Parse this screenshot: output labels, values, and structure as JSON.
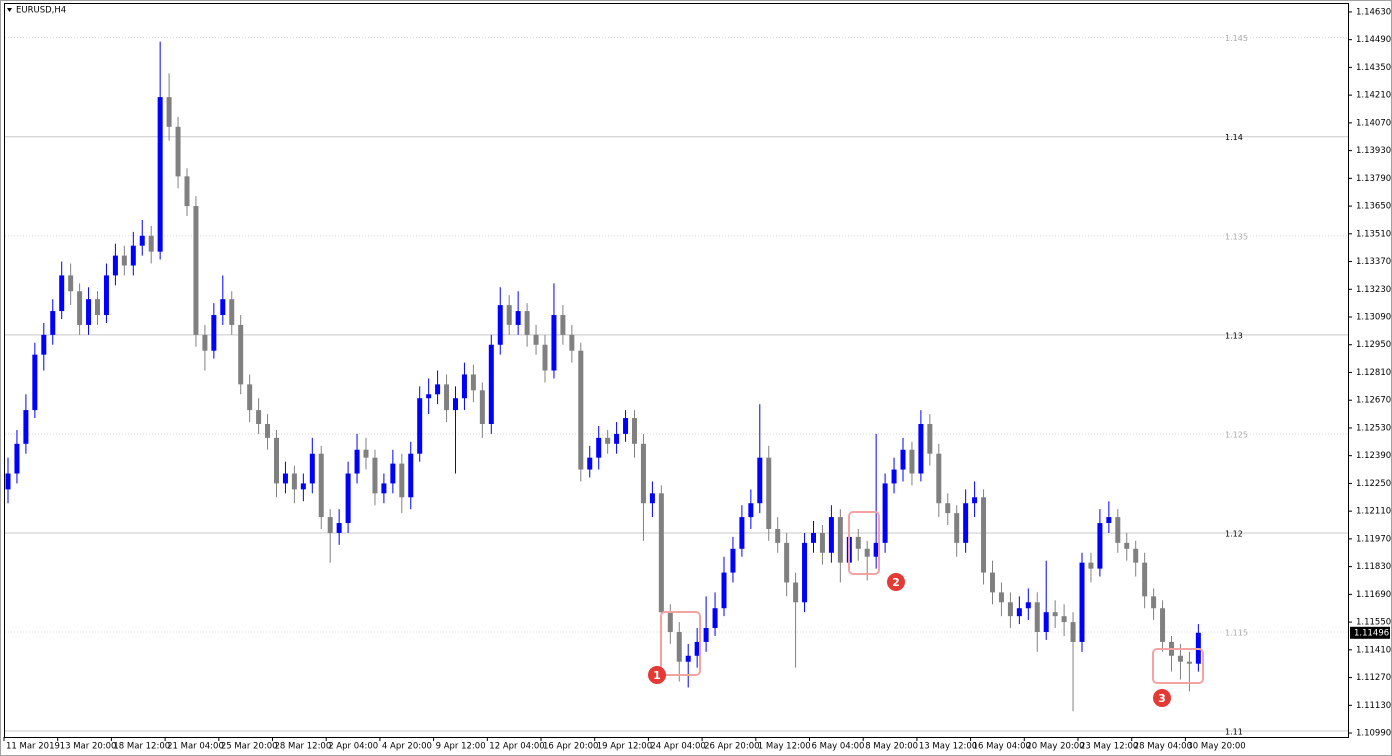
{
  "chart_data": {
    "type": "candlestick",
    "title": "EURUSD,H4",
    "up_color": "#0000ff",
    "down_color": "#808080",
    "ylim": [
      1.1097,
      1.1467
    ],
    "yticks": [
      {
        "value": 1.1463,
        "label": "1.14630"
      },
      {
        "value": 1.1449,
        "label": "1.14490"
      },
      {
        "value": 1.1435,
        "label": "1.14350"
      },
      {
        "value": 1.1421,
        "label": "1.14210"
      },
      {
        "value": 1.1407,
        "label": "1.14070"
      },
      {
        "value": 1.1393,
        "label": "1.13930"
      },
      {
        "value": 1.1379,
        "label": "1.13790"
      },
      {
        "value": 1.1365,
        "label": "1.13650"
      },
      {
        "value": 1.1351,
        "label": "1.13510"
      },
      {
        "value": 1.1337,
        "label": "1.13370"
      },
      {
        "value": 1.1323,
        "label": "1.13230"
      },
      {
        "value": 1.1309,
        "label": "1.13090"
      },
      {
        "value": 1.1295,
        "label": "1.12950"
      },
      {
        "value": 1.1281,
        "label": "1.12810"
      },
      {
        "value": 1.1267,
        "label": "1.12670"
      },
      {
        "value": 1.1253,
        "label": "1.12530"
      },
      {
        "value": 1.1239,
        "label": "1.12390"
      },
      {
        "value": 1.1225,
        "label": "1.12250"
      },
      {
        "value": 1.1211,
        "label": "1.12110"
      },
      {
        "value": 1.1197,
        "label": "1.11970"
      },
      {
        "value": 1.1183,
        "label": "1.11830"
      },
      {
        "value": 1.1169,
        "label": "1.11690"
      },
      {
        "value": 1.1155,
        "label": "1.11550"
      },
      {
        "value": 1.1141,
        "label": "1.11410"
      },
      {
        "value": 1.1127,
        "label": "1.11270"
      },
      {
        "value": 1.1113,
        "label": "1.11130"
      },
      {
        "value": 1.1099,
        "label": "1.10990"
      }
    ],
    "levels": [
      1.145,
      1.14,
      1.135,
      1.13,
      1.125,
      1.12,
      1.115,
      1.11
    ],
    "current_price": 1.11496,
    "x_labels": [
      "11 Mar 2019",
      "13 Mar 20:00",
      "18 Mar 12:00",
      "21 Mar 04:00",
      "25 Mar 20:00",
      "28 Mar 12:00",
      "2 Apr 04:00",
      "4 Apr 20:00",
      "9 Apr 12:00",
      "12 Apr 04:00",
      "16 Apr 20:00",
      "19 Apr 12:00",
      "24 Apr 04:00",
      "26 Apr 20:00",
      "1 May 12:00",
      "6 May 04:00",
      "8 May 20:00",
      "13 May 12:00",
      "16 May 04:00",
      "20 May 20:00",
      "23 May 12:00",
      "28 May 04:00",
      "30 May 20:00"
    ],
    "annotations": [
      "1",
      "2",
      "3"
    ],
    "candles": [
      [
        1.1222,
        1.1238,
        1.1215,
        1.123
      ],
      [
        1.123,
        1.1252,
        1.1225,
        1.1245
      ],
      [
        1.1245,
        1.127,
        1.124,
        1.1262
      ],
      [
        1.1262,
        1.1296,
        1.1258,
        1.129
      ],
      [
        1.129,
        1.1306,
        1.1282,
        1.13
      ],
      [
        1.13,
        1.1318,
        1.1295,
        1.1312
      ],
      [
        1.1312,
        1.1337,
        1.1308,
        1.133
      ],
      [
        1.133,
        1.1336,
        1.1315,
        1.1322
      ],
      [
        1.1322,
        1.1326,
        1.13,
        1.1305
      ],
      [
        1.1305,
        1.1324,
        1.13,
        1.1318
      ],
      [
        1.1318,
        1.1322,
        1.1305,
        1.131
      ],
      [
        1.131,
        1.1336,
        1.1306,
        1.133
      ],
      [
        1.133,
        1.1346,
        1.1325,
        1.134
      ],
      [
        1.134,
        1.1345,
        1.133,
        1.1335
      ],
      [
        1.1335,
        1.1352,
        1.133,
        1.1345
      ],
      [
        1.1345,
        1.1358,
        1.134,
        1.135
      ],
      [
        1.135,
        1.1355,
        1.1336,
        1.1342
      ],
      [
        1.1342,
        1.1448,
        1.1338,
        1.142
      ],
      [
        1.142,
        1.1432,
        1.1398,
        1.1405
      ],
      [
        1.1405,
        1.141,
        1.1374,
        1.138
      ],
      [
        1.138,
        1.1384,
        1.136,
        1.1365
      ],
      [
        1.1365,
        1.137,
        1.1294,
        1.13
      ],
      [
        1.13,
        1.1305,
        1.1282,
        1.1292
      ],
      [
        1.1292,
        1.1316,
        1.1288,
        1.131
      ],
      [
        1.131,
        1.133,
        1.1305,
        1.1318
      ],
      [
        1.1318,
        1.1322,
        1.13,
        1.1305
      ],
      [
        1.1305,
        1.131,
        1.127,
        1.1275
      ],
      [
        1.1275,
        1.128,
        1.1256,
        1.1262
      ],
      [
        1.1262,
        1.1268,
        1.125,
        1.1255
      ],
      [
        1.1255,
        1.126,
        1.1242,
        1.1248
      ],
      [
        1.1248,
        1.1252,
        1.1218,
        1.1225
      ],
      [
        1.1225,
        1.1236,
        1.122,
        1.123
      ],
      [
        1.123,
        1.1234,
        1.1215,
        1.1222
      ],
      [
        1.1222,
        1.123,
        1.1216,
        1.1225
      ],
      [
        1.1225,
        1.1248,
        1.122,
        1.124
      ],
      [
        1.124,
        1.1244,
        1.1202,
        1.1208
      ],
      [
        1.1208,
        1.1212,
        1.1185,
        1.12
      ],
      [
        1.12,
        1.1212,
        1.1194,
        1.1205
      ],
      [
        1.1205,
        1.1236,
        1.12,
        1.123
      ],
      [
        1.123,
        1.125,
        1.1225,
        1.1242
      ],
      [
        1.1242,
        1.1248,
        1.1232,
        1.1238
      ],
      [
        1.1238,
        1.1242,
        1.1214,
        1.122
      ],
      [
        1.122,
        1.123,
        1.1215,
        1.1225
      ],
      [
        1.1225,
        1.1242,
        1.122,
        1.1235
      ],
      [
        1.1235,
        1.124,
        1.121,
        1.1218
      ],
      [
        1.1218,
        1.1246,
        1.1212,
        1.124
      ],
      [
        1.124,
        1.1274,
        1.1236,
        1.1268
      ],
      [
        1.1268,
        1.1278,
        1.126,
        1.127
      ],
      [
        1.127,
        1.1282,
        1.1265,
        1.1275
      ],
      [
        1.1275,
        1.128,
        1.1256,
        1.1262
      ],
      [
        1.1262,
        1.1274,
        1.123,
        1.1268
      ],
      [
        1.1268,
        1.1286,
        1.1262,
        1.128
      ],
      [
        1.128,
        1.1285,
        1.1266,
        1.1272
      ],
      [
        1.1272,
        1.1276,
        1.1248,
        1.1255
      ],
      [
        1.1255,
        1.13,
        1.125,
        1.1295
      ],
      [
        1.1295,
        1.1324,
        1.129,
        1.1315
      ],
      [
        1.1315,
        1.132,
        1.13,
        1.1305
      ],
      [
        1.1305,
        1.1322,
        1.13,
        1.1312
      ],
      [
        1.1312,
        1.1316,
        1.1294,
        1.13
      ],
      [
        1.13,
        1.1305,
        1.129,
        1.1295
      ],
      [
        1.1295,
        1.13,
        1.1276,
        1.1282
      ],
      [
        1.1282,
        1.1326,
        1.1278,
        1.131
      ],
      [
        1.131,
        1.1315,
        1.1295,
        1.13
      ],
      [
        1.13,
        1.1305,
        1.1286,
        1.1292
      ],
      [
        1.1292,
        1.1296,
        1.1226,
        1.1232
      ],
      [
        1.1232,
        1.1244,
        1.1228,
        1.1238
      ],
      [
        1.1238,
        1.1254,
        1.1232,
        1.1248
      ],
      [
        1.1248,
        1.1252,
        1.124,
        1.1245
      ],
      [
        1.1245,
        1.1256,
        1.124,
        1.125
      ],
      [
        1.125,
        1.1262,
        1.1246,
        1.1258
      ],
      [
        1.1258,
        1.1262,
        1.1238,
        1.1245
      ],
      [
        1.1245,
        1.125,
        1.1196,
        1.1215
      ],
      [
        1.1215,
        1.1226,
        1.1208,
        1.122
      ],
      [
        1.122,
        1.1224,
        1.1155,
        1.116
      ],
      [
        1.116,
        1.1164,
        1.1144,
        1.115
      ],
      [
        1.115,
        1.1155,
        1.1125,
        1.1135
      ],
      [
        1.1135,
        1.1144,
        1.1122,
        1.1138
      ],
      [
        1.1138,
        1.1152,
        1.1132,
        1.1145
      ],
      [
        1.1145,
        1.1168,
        1.114,
        1.1152
      ],
      [
        1.1152,
        1.117,
        1.1148,
        1.1162
      ],
      [
        1.1162,
        1.1188,
        1.1158,
        1.118
      ],
      [
        1.118,
        1.1198,
        1.1175,
        1.1192
      ],
      [
        1.1192,
        1.1214,
        1.1188,
        1.1208
      ],
      [
        1.1208,
        1.1222,
        1.1202,
        1.1215
      ],
      [
        1.1215,
        1.1265,
        1.121,
        1.1238
      ],
      [
        1.1238,
        1.1244,
        1.1196,
        1.1202
      ],
      [
        1.1202,
        1.1208,
        1.119,
        1.1195
      ],
      [
        1.1195,
        1.12,
        1.1168,
        1.1175
      ],
      [
        1.1175,
        1.118,
        1.1132,
        1.1165
      ],
      [
        1.1165,
        1.12,
        1.116,
        1.1195
      ],
      [
        1.1195,
        1.1206,
        1.119,
        1.12
      ],
      [
        1.12,
        1.1204,
        1.1184,
        1.119
      ],
      [
        1.119,
        1.1214,
        1.1185,
        1.1208
      ],
      [
        1.1208,
        1.1212,
        1.1175,
        1.1185
      ],
      [
        1.1185,
        1.1204,
        1.118,
        1.1198
      ],
      [
        1.1198,
        1.1202,
        1.1186,
        1.1192
      ],
      [
        1.1192,
        1.1196,
        1.1176,
        1.1188
      ],
      [
        1.1188,
        1.125,
        1.1182,
        1.1195
      ],
      [
        1.1195,
        1.123,
        1.119,
        1.1225
      ],
      [
        1.1225,
        1.1238,
        1.122,
        1.1232
      ],
      [
        1.1232,
        1.1248,
        1.1226,
        1.1242
      ],
      [
        1.1242,
        1.1246,
        1.1224,
        1.123
      ],
      [
        1.123,
        1.1262,
        1.1226,
        1.1255
      ],
      [
        1.1255,
        1.126,
        1.1234,
        1.124
      ],
      [
        1.124,
        1.1245,
        1.1208,
        1.1215
      ],
      [
        1.1215,
        1.122,
        1.1204,
        1.121
      ],
      [
        1.121,
        1.1214,
        1.1188,
        1.1195
      ],
      [
        1.1195,
        1.1222,
        1.119,
        1.1215
      ],
      [
        1.1215,
        1.1226,
        1.1208,
        1.1218
      ],
      [
        1.1218,
        1.1222,
        1.1174,
        1.118
      ],
      [
        1.118,
        1.1186,
        1.1164,
        1.117
      ],
      [
        1.117,
        1.1175,
        1.1158,
        1.1165
      ],
      [
        1.1165,
        1.117,
        1.1152,
        1.1158
      ],
      [
        1.1158,
        1.1168,
        1.1154,
        1.1162
      ],
      [
        1.1162,
        1.1172,
        1.1156,
        1.1165
      ],
      [
        1.1165,
        1.117,
        1.114,
        1.115
      ],
      [
        1.115,
        1.1186,
        1.1146,
        1.116
      ],
      [
        1.116,
        1.1166,
        1.1152,
        1.1158
      ],
      [
        1.1158,
        1.1164,
        1.1148,
        1.1155
      ],
      [
        1.1155,
        1.116,
        1.111,
        1.1145
      ],
      [
        1.1145,
        1.119,
        1.114,
        1.1185
      ],
      [
        1.1185,
        1.119,
        1.1175,
        1.1182
      ],
      [
        1.1182,
        1.1212,
        1.1178,
        1.1205
      ],
      [
        1.1205,
        1.1216,
        1.12,
        1.1208
      ],
      [
        1.1208,
        1.1212,
        1.119,
        1.1195
      ],
      [
        1.1195,
        1.12,
        1.1186,
        1.1192
      ],
      [
        1.1192,
        1.1196,
        1.1178,
        1.1185
      ],
      [
        1.1185,
        1.119,
        1.1162,
        1.1168
      ],
      [
        1.1168,
        1.1172,
        1.1156,
        1.1162
      ],
      [
        1.1162,
        1.1166,
        1.114,
        1.1145
      ],
      [
        1.1145,
        1.1148,
        1.113,
        1.1138
      ],
      [
        1.1138,
        1.1144,
        1.1126,
        1.1135
      ],
      [
        1.1135,
        1.114,
        1.112,
        1.1134
      ],
      [
        1.1134,
        1.1154,
        1.113,
        1.11496
      ]
    ]
  }
}
